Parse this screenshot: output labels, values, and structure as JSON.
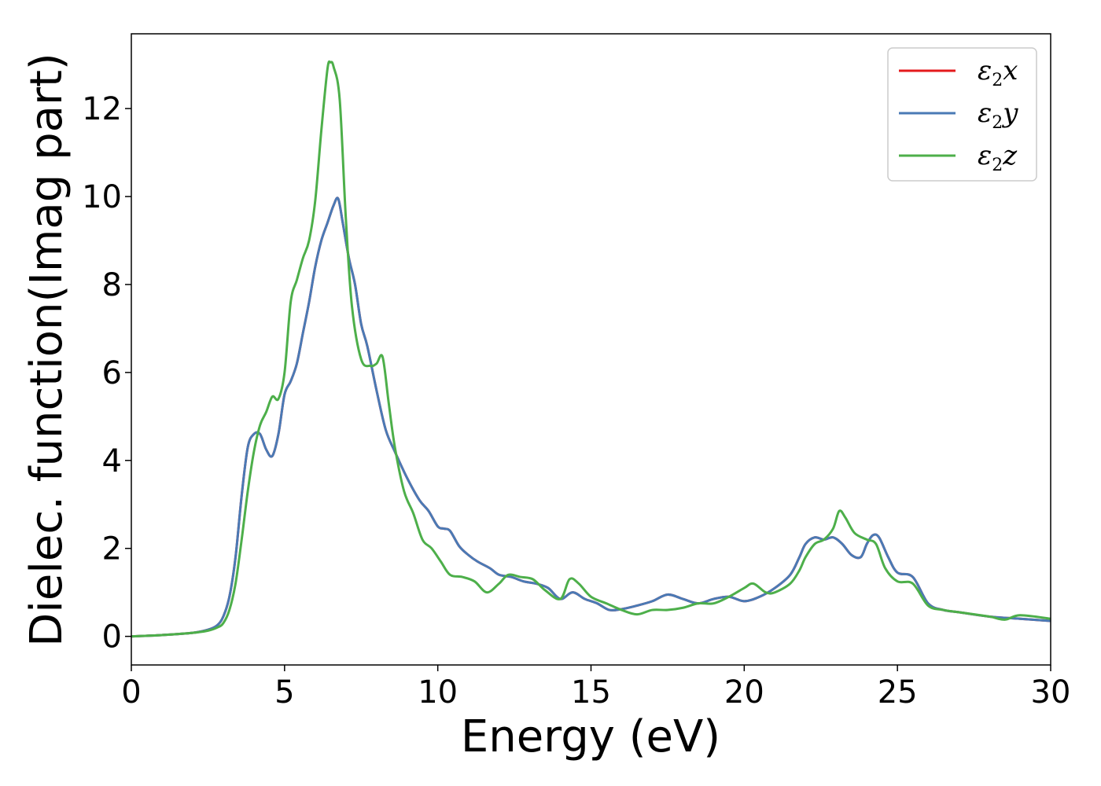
{
  "chart_data": {
    "type": "line",
    "title": "",
    "xlabel": "Energy (eV)",
    "ylabel": "Dielec. function(Imag part)",
    "xlim": [
      0,
      30
    ],
    "ylim": [
      -0.65,
      13.7
    ],
    "xticks": [
      0,
      5,
      10,
      15,
      20,
      25,
      30
    ],
    "yticks": [
      0,
      2,
      4,
      6,
      8,
      10,
      12
    ],
    "grid": false,
    "legend": "top-right",
    "series": [
      {
        "name": "ε2x",
        "legend_main": "ε",
        "legend_sub": "2",
        "legend_tail": "x",
        "color": "#e41a1c",
        "x": [
          0,
          1,
          2,
          2.5,
          2.8,
          3.0,
          3.2,
          3.4,
          3.6,
          3.8,
          4.0,
          4.2,
          4.4,
          4.6,
          4.8,
          5.0,
          5.2,
          5.4,
          5.6,
          5.8,
          6.0,
          6.2,
          6.4,
          6.6,
          6.75,
          6.9,
          7.1,
          7.3,
          7.5,
          7.7,
          8.0,
          8.3,
          8.6,
          9.0,
          9.4,
          9.7,
          10.0,
          10.2,
          10.4,
          10.7,
          11.0,
          11.3,
          11.7,
          12.0,
          12.4,
          12.8,
          13.2,
          13.6,
          14.0,
          14.4,
          14.8,
          15.2,
          15.6,
          16.0,
          16.5,
          17.0,
          17.5,
          18.0,
          18.5,
          19.0,
          19.5,
          20.0,
          20.5,
          21.0,
          21.5,
          21.8,
          22.0,
          22.3,
          22.6,
          22.9,
          23.2,
          23.5,
          23.8,
          24.0,
          24.2,
          24.4,
          24.7,
          25.0,
          25.5,
          26.0,
          26.5,
          27.0,
          28.0,
          29.0,
          30.0
        ],
        "values": [
          0,
          0.03,
          0.08,
          0.15,
          0.25,
          0.45,
          0.9,
          1.8,
          3.2,
          4.3,
          4.6,
          4.6,
          4.25,
          4.1,
          4.6,
          5.5,
          5.8,
          6.2,
          6.9,
          7.6,
          8.4,
          9.0,
          9.4,
          9.8,
          9.95,
          9.4,
          8.6,
          8.0,
          7.1,
          6.6,
          5.6,
          4.7,
          4.2,
          3.6,
          3.1,
          2.85,
          2.5,
          2.45,
          2.4,
          2.05,
          1.85,
          1.7,
          1.55,
          1.4,
          1.35,
          1.25,
          1.2,
          1.1,
          0.85,
          1.0,
          0.85,
          0.75,
          0.6,
          0.62,
          0.7,
          0.8,
          0.95,
          0.85,
          0.75,
          0.85,
          0.9,
          0.8,
          0.9,
          1.1,
          1.4,
          1.8,
          2.1,
          2.25,
          2.2,
          2.25,
          2.1,
          1.85,
          1.8,
          2.1,
          2.3,
          2.25,
          1.8,
          1.45,
          1.35,
          0.75,
          0.6,
          0.55,
          0.45,
          0.4,
          0.35
        ]
      },
      {
        "name": "ε2y",
        "legend_main": "ε",
        "legend_sub": "2",
        "legend_tail": "y",
        "color": "#4a7ab5",
        "x": [
          0,
          1,
          2,
          2.5,
          2.8,
          3.0,
          3.2,
          3.4,
          3.6,
          3.8,
          4.0,
          4.2,
          4.4,
          4.6,
          4.8,
          5.0,
          5.2,
          5.4,
          5.6,
          5.8,
          6.0,
          6.2,
          6.4,
          6.6,
          6.75,
          6.9,
          7.1,
          7.3,
          7.5,
          7.7,
          8.0,
          8.3,
          8.6,
          9.0,
          9.4,
          9.7,
          10.0,
          10.2,
          10.4,
          10.7,
          11.0,
          11.3,
          11.7,
          12.0,
          12.4,
          12.8,
          13.2,
          13.6,
          14.0,
          14.4,
          14.8,
          15.2,
          15.6,
          16.0,
          16.5,
          17.0,
          17.5,
          18.0,
          18.5,
          19.0,
          19.5,
          20.0,
          20.5,
          21.0,
          21.5,
          21.8,
          22.0,
          22.3,
          22.6,
          22.9,
          23.2,
          23.5,
          23.8,
          24.0,
          24.2,
          24.4,
          24.7,
          25.0,
          25.5,
          26.0,
          26.5,
          27.0,
          28.0,
          29.0,
          30.0
        ],
        "values": [
          0,
          0.03,
          0.08,
          0.15,
          0.25,
          0.45,
          0.9,
          1.8,
          3.2,
          4.3,
          4.6,
          4.6,
          4.25,
          4.1,
          4.6,
          5.5,
          5.8,
          6.2,
          6.9,
          7.6,
          8.4,
          9.0,
          9.4,
          9.8,
          9.95,
          9.4,
          8.6,
          8.0,
          7.1,
          6.6,
          5.6,
          4.7,
          4.2,
          3.6,
          3.1,
          2.85,
          2.5,
          2.45,
          2.4,
          2.05,
          1.85,
          1.7,
          1.55,
          1.4,
          1.35,
          1.25,
          1.2,
          1.1,
          0.85,
          1.0,
          0.85,
          0.75,
          0.6,
          0.62,
          0.7,
          0.8,
          0.95,
          0.85,
          0.75,
          0.85,
          0.9,
          0.8,
          0.9,
          1.1,
          1.4,
          1.8,
          2.1,
          2.25,
          2.2,
          2.25,
          2.1,
          1.85,
          1.8,
          2.1,
          2.3,
          2.25,
          1.8,
          1.45,
          1.35,
          0.75,
          0.6,
          0.55,
          0.45,
          0.4,
          0.35
        ]
      },
      {
        "name": "ε2z",
        "legend_main": "ε",
        "legend_sub": "2",
        "legend_tail": "z",
        "color": "#4daf4a",
        "x": [
          0,
          1,
          2,
          2.5,
          2.8,
          3.0,
          3.2,
          3.4,
          3.6,
          3.8,
          4.0,
          4.2,
          4.4,
          4.6,
          4.8,
          5.0,
          5.2,
          5.4,
          5.6,
          5.8,
          6.0,
          6.2,
          6.4,
          6.5,
          6.6,
          6.8,
          7.0,
          7.2,
          7.5,
          7.8,
          8.0,
          8.2,
          8.4,
          8.6,
          8.9,
          9.2,
          9.5,
          9.8,
          10.1,
          10.4,
          10.8,
          11.2,
          11.6,
          12.0,
          12.3,
          12.7,
          13.1,
          13.5,
          14.0,
          14.3,
          14.6,
          15.0,
          15.5,
          16.0,
          16.5,
          17.0,
          17.5,
          18.0,
          18.5,
          19.0,
          19.5,
          20.0,
          20.3,
          20.7,
          21.0,
          21.5,
          21.8,
          22.0,
          22.3,
          22.6,
          22.9,
          23.1,
          23.3,
          23.6,
          24.0,
          24.3,
          24.6,
          25.0,
          25.5,
          26.0,
          26.5,
          27.0,
          28.0,
          28.5,
          29.0,
          30.0
        ],
        "values": [
          0,
          0.03,
          0.08,
          0.13,
          0.2,
          0.3,
          0.6,
          1.2,
          2.2,
          3.3,
          4.2,
          4.8,
          5.1,
          5.45,
          5.4,
          6.0,
          7.6,
          8.1,
          8.6,
          9.0,
          9.9,
          11.5,
          12.9,
          13.05,
          12.95,
          12.2,
          9.5,
          7.5,
          6.3,
          6.15,
          6.2,
          6.35,
          5.3,
          4.3,
          3.3,
          2.8,
          2.2,
          2.0,
          1.7,
          1.4,
          1.35,
          1.25,
          1.0,
          1.2,
          1.4,
          1.35,
          1.3,
          1.05,
          0.85,
          1.3,
          1.2,
          0.9,
          0.75,
          0.6,
          0.5,
          0.6,
          0.6,
          0.65,
          0.75,
          0.75,
          0.9,
          1.1,
          1.2,
          1.0,
          1.0,
          1.2,
          1.5,
          1.8,
          2.1,
          2.2,
          2.45,
          2.85,
          2.7,
          2.35,
          2.2,
          2.1,
          1.55,
          1.25,
          1.2,
          0.7,
          0.6,
          0.55,
          0.45,
          0.38,
          0.48,
          0.4
        ]
      }
    ]
  }
}
